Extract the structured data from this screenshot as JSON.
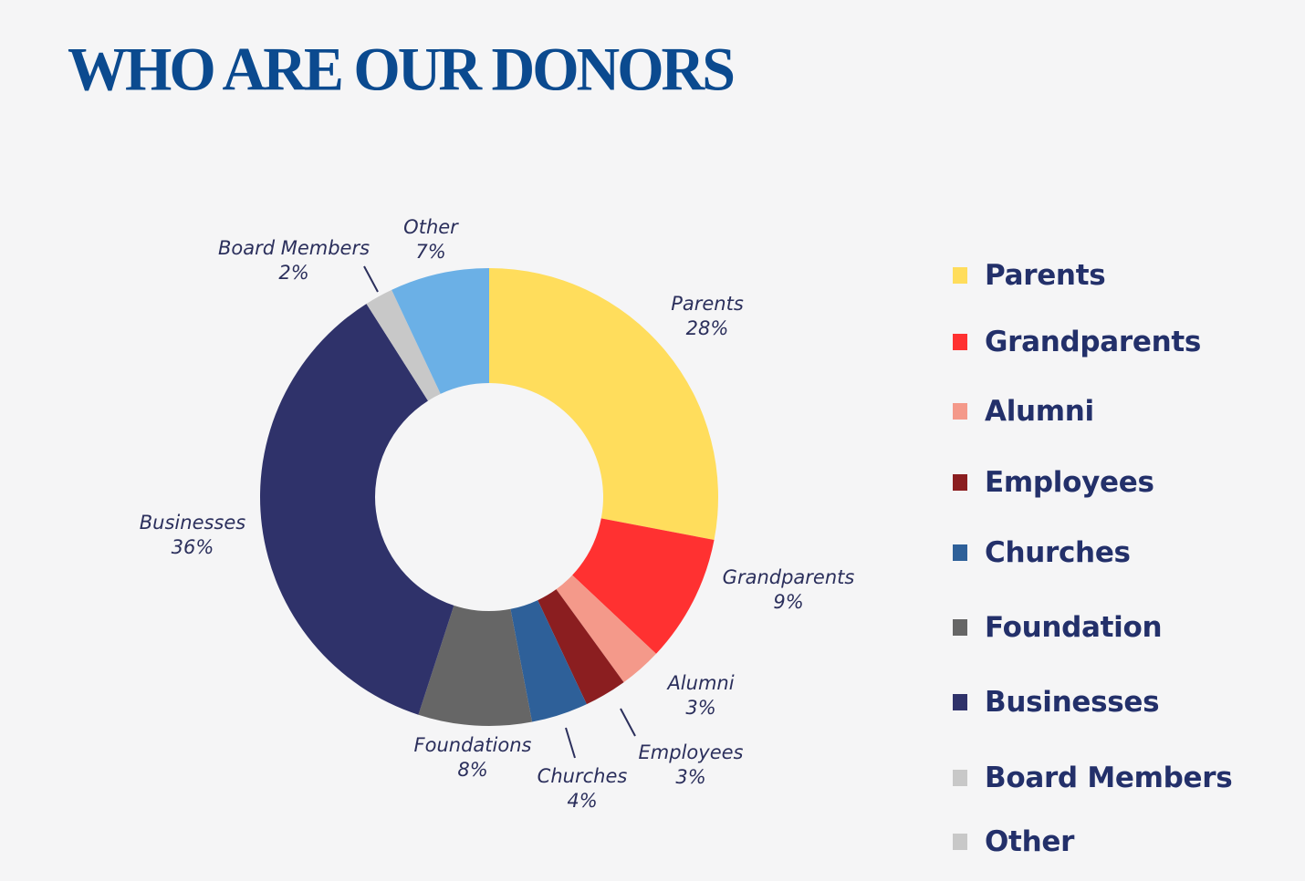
{
  "page": {
    "title": "WHO ARE OUR DONORS"
  },
  "chart_data": {
    "type": "pie",
    "subtype": "donut",
    "title": "WHO ARE OUR DONORS",
    "start_angle_deg": 0,
    "direction": "clockwise",
    "legend_position": "right",
    "categories": [
      "Parents",
      "Grandparents",
      "Alumni",
      "Employees",
      "Churches",
      "Foundations",
      "Businesses",
      "Board Members",
      "Other"
    ],
    "values": [
      28,
      9,
      3,
      3,
      4,
      8,
      36,
      2,
      7
    ],
    "unit": "%",
    "colors": [
      "#ffdd5c",
      "#ff3131",
      "#f4998a",
      "#8b1e20",
      "#2e6099",
      "#666666",
      "#2f326a",
      "#c8c8c8",
      "#6bb0e6"
    ],
    "data_labels": [
      {
        "name": "Parents",
        "value": "28%"
      },
      {
        "name": "Grandparents",
        "value": "9%"
      },
      {
        "name": "Alumni",
        "value": "3%"
      },
      {
        "name": "Employees",
        "value": "3%"
      },
      {
        "name": "Churches",
        "value": "4%"
      },
      {
        "name": "Foundations",
        "value": "8%"
      },
      {
        "name": "Businesses",
        "value": "36%"
      },
      {
        "name": "Board Members",
        "value": "2%"
      },
      {
        "name": "Other",
        "value": "7%"
      }
    ],
    "legend": [
      {
        "label": "Parents",
        "color": "#ffdd5c"
      },
      {
        "label": "Grandparents",
        "color": "#ff3131"
      },
      {
        "label": "Alumni",
        "color": "#f4998a"
      },
      {
        "label": "Employees",
        "color": "#8b1e20"
      },
      {
        "label": "Churches",
        "color": "#2e6099"
      },
      {
        "label": "Foundation",
        "color": "#666666"
      },
      {
        "label": "Businesses",
        "color": "#2f326a"
      },
      {
        "label": "Board Members",
        "color": "#c8c8c8"
      },
      {
        "label": "Other",
        "color": "#c8c8c8"
      }
    ]
  }
}
